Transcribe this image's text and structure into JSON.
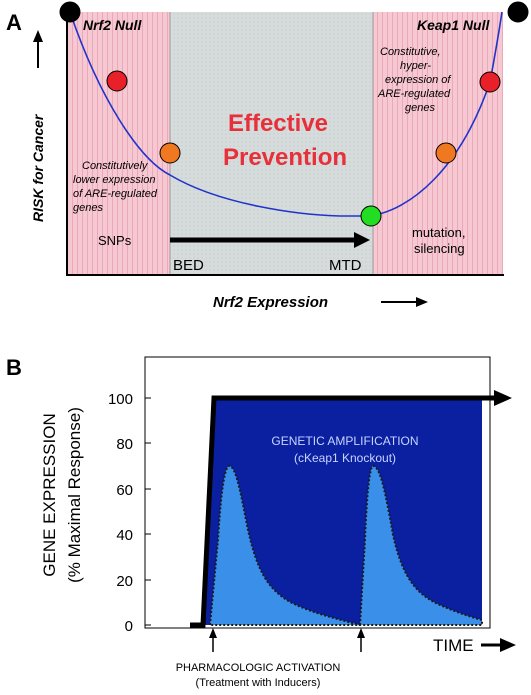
{
  "panel_a": {
    "letter": "A",
    "left_zone_label": "Nrf2 Null",
    "right_zone_label": "Keap1 Null",
    "center_title_line1": "Effective",
    "center_title_line2": "Prevention",
    "left_note_lines": [
      "Constitutively",
      "lower expression",
      "of ARE-regulated",
      "genes"
    ],
    "right_note_lines": [
      "Constitutive,",
      "hyper-",
      "expression of",
      "ARE-regulated",
      "genes"
    ],
    "snps_label": "SNPs",
    "mutation_lines": [
      "mutation,",
      "silencing"
    ],
    "bed_label": "BED",
    "mtd_label": "MTD",
    "y_axis_label": "RISK for Cancer",
    "x_axis_label": "Nrf2 Expression",
    "colors": {
      "zone_pink": "#f6c8d2",
      "zone_gray": "#d6dcdc",
      "curve": "#2233cc",
      "title_red": "#e8303a",
      "dot_red": "#e8202a",
      "dot_orange": "#f07820",
      "dot_green": "#22dd22",
      "dot_black": "#000000"
    }
  },
  "panel_b": {
    "letter": "B",
    "y_axis_label_line1": "GENE EXPRESSION",
    "y_axis_label_line2": "(% Maximal Response)",
    "y_ticks": [
      "0",
      "20",
      "40",
      "60",
      "80",
      "100"
    ],
    "x_axis_label": "TIME",
    "genetic_line1": "GENETIC AMPLIFICATION",
    "genetic_line2": "(cKeap1 Knockout)",
    "pharm_line1": "PHARMACOLOGIC ACTIVATION",
    "pharm_line2": "(Treatment with Inducers)",
    "colors": {
      "genetic_fill": "#0a20a0",
      "pharm_fill": "#3a90e8",
      "genetic_text": "#c8d4ff"
    }
  }
}
